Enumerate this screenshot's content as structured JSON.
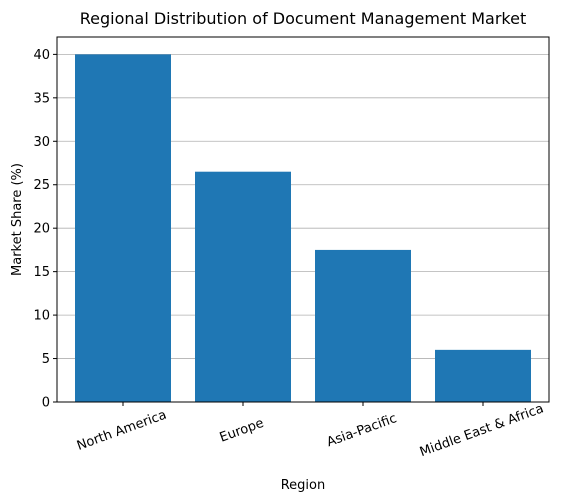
{
  "chart_data": {
    "type": "bar",
    "title": "Regional Distribution of Document Management Market",
    "xlabel": "Region",
    "ylabel": "Market Share (%)",
    "categories": [
      "North America",
      "Europe",
      "Asia-Pacific",
      "Middle East & Africa"
    ],
    "values": [
      40,
      26.5,
      17.5,
      6
    ],
    "ylim": [
      0,
      42
    ],
    "yticks": [
      0,
      5,
      10,
      15,
      20,
      25,
      30,
      35,
      40
    ],
    "grid": "y",
    "legend": "none",
    "bar_color": "#1f77b4",
    "x_tick_rotation": "rotated"
  }
}
